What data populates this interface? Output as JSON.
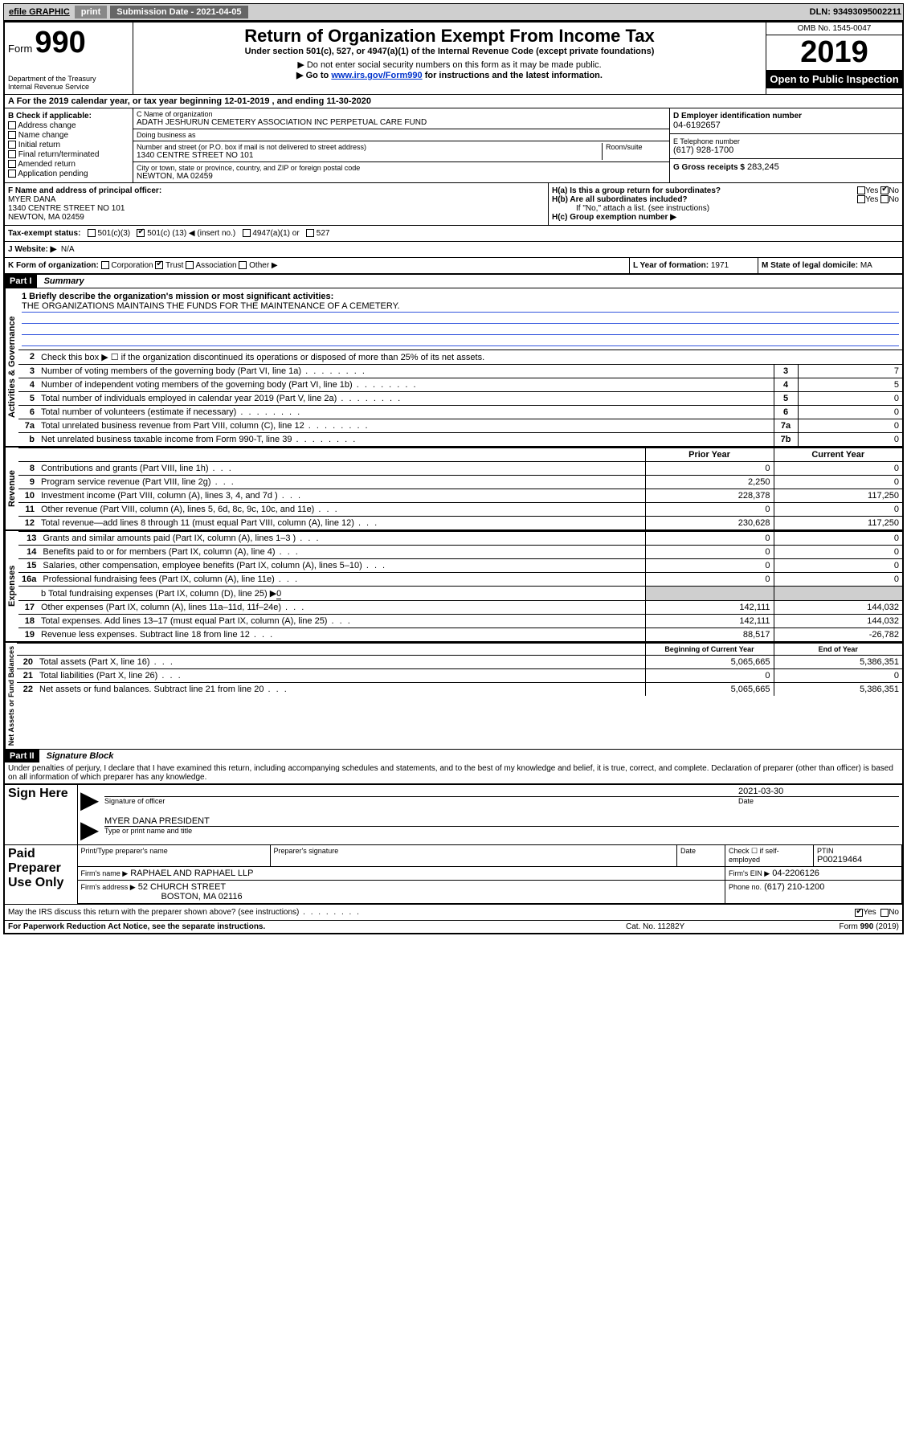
{
  "topbar": {
    "efile": "efile GRAPHIC",
    "print": "print",
    "submission_label": "Submission Date - 2021-04-05",
    "dln": "DLN: 93493095002211"
  },
  "header": {
    "form_label": "Form",
    "form_number": "990",
    "dept": "Department of the Treasury",
    "irs": "Internal Revenue Service",
    "title": "Return of Organization Exempt From Income Tax",
    "subtitle": "Under section 501(c), 527, or 4947(a)(1) of the Internal Revenue Code (except private foundations)",
    "note1": "▶ Do not enter social security numbers on this form as it may be made public.",
    "note2_pre": "▶ Go to ",
    "note2_link": "www.irs.gov/Form990",
    "note2_post": " for instructions and the latest information.",
    "omb": "OMB No. 1545-0047",
    "year": "2019",
    "public": "Open to Public Inspection"
  },
  "line_a": "A For the 2019 calendar year, or tax year beginning 12-01-2019    , and ending 11-30-2020",
  "section_b": {
    "label": "B Check if applicable:",
    "opts": [
      "Address change",
      "Name change",
      "Initial return",
      "Final return/terminated",
      "Amended return",
      "Application pending"
    ]
  },
  "section_c": {
    "name_label": "C Name of organization",
    "name": "ADATH JESHURUN CEMETERY ASSOCIATION INC PERPETUAL CARE FUND",
    "dba_label": "Doing business as",
    "addr_label": "Number and street (or P.O. box if mail is not delivered to street address)",
    "room_label": "Room/suite",
    "addr": "1340 CENTRE STREET NO 101",
    "city_label": "City or town, state or province, country, and ZIP or foreign postal code",
    "city": "NEWTON, MA  02459"
  },
  "section_d": {
    "label": "D Employer identification number",
    "value": "04-6192657"
  },
  "section_e": {
    "label": "E Telephone number",
    "value": "(617) 928-1700"
  },
  "section_g": {
    "label": "G Gross receipts $",
    "value": "283,245"
  },
  "section_f": {
    "label": "F  Name and address of principal officer:",
    "name": "MYER DANA",
    "addr": "1340 CENTRE STREET NO 101",
    "city": "NEWTON, MA  02459"
  },
  "section_h": {
    "ha": "H(a)  Is this a group return for subordinates?",
    "hb": "H(b)  Are all subordinates included?",
    "hb_note": "If \"No,\" attach a list. (see instructions)",
    "hc": "H(c)  Group exemption number ▶"
  },
  "yes": "Yes",
  "no": "No",
  "tax_exempt": {
    "label": "Tax-exempt status:",
    "o1": "501(c)(3)",
    "o2_pre": "501(c) (",
    "o2_val": "13",
    "o2_post": ") ◀ (insert no.)",
    "o3": "4947(a)(1) or",
    "o4": "527"
  },
  "section_j": {
    "label": "J   Website: ▶",
    "value": "N/A"
  },
  "section_k": {
    "label": "K Form of organization:",
    "opts": [
      "Corporation",
      "Trust",
      "Association",
      "Other ▶"
    ]
  },
  "section_l": {
    "label": "L Year of formation:",
    "value": "1971"
  },
  "section_m": {
    "label": "M State of legal domicile:",
    "value": "MA"
  },
  "part1": {
    "header": "Part I",
    "title": "Summary",
    "side_gov": "Activities & Governance",
    "side_rev": "Revenue",
    "side_exp": "Expenses",
    "side_net": "Net Assets or Fund Balances",
    "l1_label": "1   Briefly describe the organization's mission or most significant activities:",
    "l1_text": "THE ORGANIZATIONS MAINTAINS THE FUNDS FOR THE MAINTENANCE OF A CEMETERY.",
    "l2": "Check this box ▶ ☐  if the organization discontinued its operations or disposed of more than 25% of its net assets.",
    "lines_gov": [
      {
        "n": "3",
        "t": "Number of voting members of the governing body (Part VI, line 1a)",
        "box": "3",
        "v": "7"
      },
      {
        "n": "4",
        "t": "Number of independent voting members of the governing body (Part VI, line 1b)",
        "box": "4",
        "v": "5"
      },
      {
        "n": "5",
        "t": "Total number of individuals employed in calendar year 2019 (Part V, line 2a)",
        "box": "5",
        "v": "0"
      },
      {
        "n": "6",
        "t": "Total number of volunteers (estimate if necessary)",
        "box": "6",
        "v": "0"
      },
      {
        "n": "7a",
        "t": "Total unrelated business revenue from Part VIII, column (C), line 12",
        "box": "7a",
        "v": "0"
      },
      {
        "n": "b",
        "t": "Net unrelated business taxable income from Form 990-T, line 39",
        "box": "7b",
        "v": "0"
      }
    ],
    "col_prior": "Prior Year",
    "col_current": "Current Year",
    "col_boy": "Beginning of Current Year",
    "col_eoy": "End of Year",
    "lines_rev": [
      {
        "n": "8",
        "t": "Contributions and grants (Part VIII, line 1h)",
        "p": "0",
        "c": "0"
      },
      {
        "n": "9",
        "t": "Program service revenue (Part VIII, line 2g)",
        "p": "2,250",
        "c": "0"
      },
      {
        "n": "10",
        "t": "Investment income (Part VIII, column (A), lines 3, 4, and 7d )",
        "p": "228,378",
        "c": "117,250"
      },
      {
        "n": "11",
        "t": "Other revenue (Part VIII, column (A), lines 5, 6d, 8c, 9c, 10c, and 11e)",
        "p": "0",
        "c": "0"
      },
      {
        "n": "12",
        "t": "Total revenue—add lines 8 through 11 (must equal Part VIII, column (A), line 12)",
        "p": "230,628",
        "c": "117,250"
      }
    ],
    "lines_exp": [
      {
        "n": "13",
        "t": "Grants and similar amounts paid (Part IX, column (A), lines 1–3 )",
        "p": "0",
        "c": "0"
      },
      {
        "n": "14",
        "t": "Benefits paid to or for members (Part IX, column (A), line 4)",
        "p": "0",
        "c": "0"
      },
      {
        "n": "15",
        "t": "Salaries, other compensation, employee benefits (Part IX, column (A), lines 5–10)",
        "p": "0",
        "c": "0"
      },
      {
        "n": "16a",
        "t": "Professional fundraising fees (Part IX, column (A), line 11e)",
        "p": "0",
        "c": "0"
      }
    ],
    "l16b_pre": "b   Total fundraising expenses (Part IX, column (D), line 25) ▶",
    "l16b_val": "0",
    "lines_exp2": [
      {
        "n": "17",
        "t": "Other expenses (Part IX, column (A), lines 11a–11d, 11f–24e)",
        "p": "142,111",
        "c": "144,032"
      },
      {
        "n": "18",
        "t": "Total expenses. Add lines 13–17 (must equal Part IX, column (A), line 25)",
        "p": "142,111",
        "c": "144,032"
      },
      {
        "n": "19",
        "t": "Revenue less expenses. Subtract line 18 from line 12",
        "p": "88,517",
        "c": "-26,782"
      }
    ],
    "lines_net": [
      {
        "n": "20",
        "t": "Total assets (Part X, line 16)",
        "p": "5,065,665",
        "c": "5,386,351"
      },
      {
        "n": "21",
        "t": "Total liabilities (Part X, line 26)",
        "p": "0",
        "c": "0"
      },
      {
        "n": "22",
        "t": "Net assets or fund balances. Subtract line 21 from line 20",
        "p": "5,065,665",
        "c": "5,386,351"
      }
    ]
  },
  "part2": {
    "header": "Part II",
    "title": "Signature Block",
    "perjury": "Under penalties of perjury, I declare that I have examined this return, including accompanying schedules and statements, and to the best of my knowledge and belief, it is true, correct, and complete. Declaration of preparer (other than officer) is based on all information of which preparer has any knowledge.",
    "sign_here": "Sign Here",
    "sig_label": "Signature of officer",
    "date_label": "Date",
    "sig_date": "2021-03-30",
    "officer_name": "MYER DANA PRESIDENT",
    "officer_name_label": "Type or print name and title",
    "paid": "Paid Preparer Use Only",
    "prep_name_label": "Print/Type preparer's name",
    "prep_sig_label": "Preparer's signature",
    "prep_date_label": "Date",
    "self_emp": "Check ☐ if self-employed",
    "ptin_label": "PTIN",
    "ptin": "P00219464",
    "firm_name_label": "Firm's name     ▶",
    "firm_name": "RAPHAEL AND RAPHAEL LLP",
    "firm_ein_label": "Firm's EIN ▶",
    "firm_ein": "04-2206126",
    "firm_addr_label": "Firm's address ▶",
    "firm_addr1": "52 CHURCH STREET",
    "firm_addr2": "BOSTON, MA  02116",
    "firm_phone_label": "Phone no.",
    "firm_phone": "(617) 210-1200",
    "discuss": "May the IRS discuss this return with the preparer shown above? (see instructions)"
  },
  "footer": {
    "left": "For Paperwork Reduction Act Notice, see the separate instructions.",
    "mid": "Cat. No. 11282Y",
    "right": "Form 990 (2019)"
  }
}
